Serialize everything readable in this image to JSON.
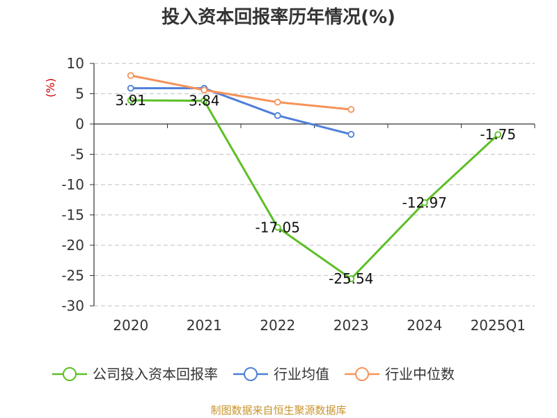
{
  "chart_data": {
    "type": "line",
    "title": "投入资本回报率历年情况(%)",
    "ylabel": "(%)",
    "categories": [
      "2020",
      "2021",
      "2022",
      "2023",
      "2024",
      "2025Q1"
    ],
    "ylim": [
      -30,
      10
    ],
    "yticks": [
      10,
      5,
      0,
      -5,
      -10,
      -15,
      -20,
      -25,
      -30
    ],
    "grid": true,
    "legend_position": "bottom",
    "series": [
      {
        "name": "公司投入资本回报率",
        "color": "#5dbf26",
        "values": [
          3.91,
          3.84,
          -17.05,
          -25.54,
          -12.97,
          -1.75
        ],
        "labels": [
          "3.91",
          "3.84",
          "-17.05",
          "-25.54",
          "-12.97",
          "-1.75"
        ]
      },
      {
        "name": "行业均值",
        "color": "#4f7fd9",
        "values": [
          5.9,
          5.9,
          1.4,
          -1.7,
          null,
          null
        ]
      },
      {
        "name": "行业中位数",
        "color": "#f5935a",
        "values": [
          8.0,
          5.6,
          3.6,
          2.4,
          null,
          null
        ]
      }
    ],
    "source": "制图数据来自恒生聚源数据库"
  }
}
